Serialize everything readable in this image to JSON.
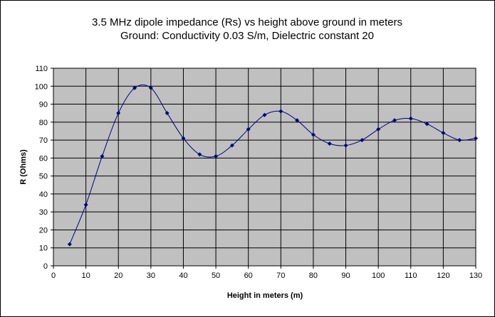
{
  "chart_data": {
    "type": "scatter",
    "title": "3.5 MHz dipole impedance (Rs) vs height above ground in meters",
    "subtitle": "Ground: Conductivity 0.03 S/m, Dielectric constant 20",
    "xlabel": "Height in meters (m)",
    "ylabel": "R (Ohms)",
    "xlim": [
      0,
      130
    ],
    "ylim": [
      0,
      110
    ],
    "x_ticks": [
      0,
      10,
      20,
      30,
      40,
      50,
      60,
      70,
      80,
      90,
      100,
      110,
      120,
      130
    ],
    "y_ticks": [
      0,
      10,
      20,
      30,
      40,
      50,
      60,
      70,
      80,
      90,
      100,
      110
    ],
    "grid": true,
    "smoothed_line": true,
    "legend": "none",
    "series": [
      {
        "x": [
          5,
          10,
          15,
          20,
          25,
          30,
          35,
          40,
          45,
          50,
          55,
          60,
          65,
          70,
          75,
          80,
          85,
          90,
          95,
          100,
          105,
          110,
          115,
          120,
          125,
          130
        ],
        "values": [
          12,
          34,
          61,
          85,
          99,
          99,
          85,
          71,
          62,
          61,
          67,
          76,
          84,
          86,
          81,
          73,
          68,
          67,
          70,
          76,
          81,
          82,
          79,
          74,
          70,
          71
        ]
      }
    ],
    "colors": {
      "plot_background": "#c0c0c0",
      "gridline": "#000000",
      "series": "#000080"
    }
  }
}
